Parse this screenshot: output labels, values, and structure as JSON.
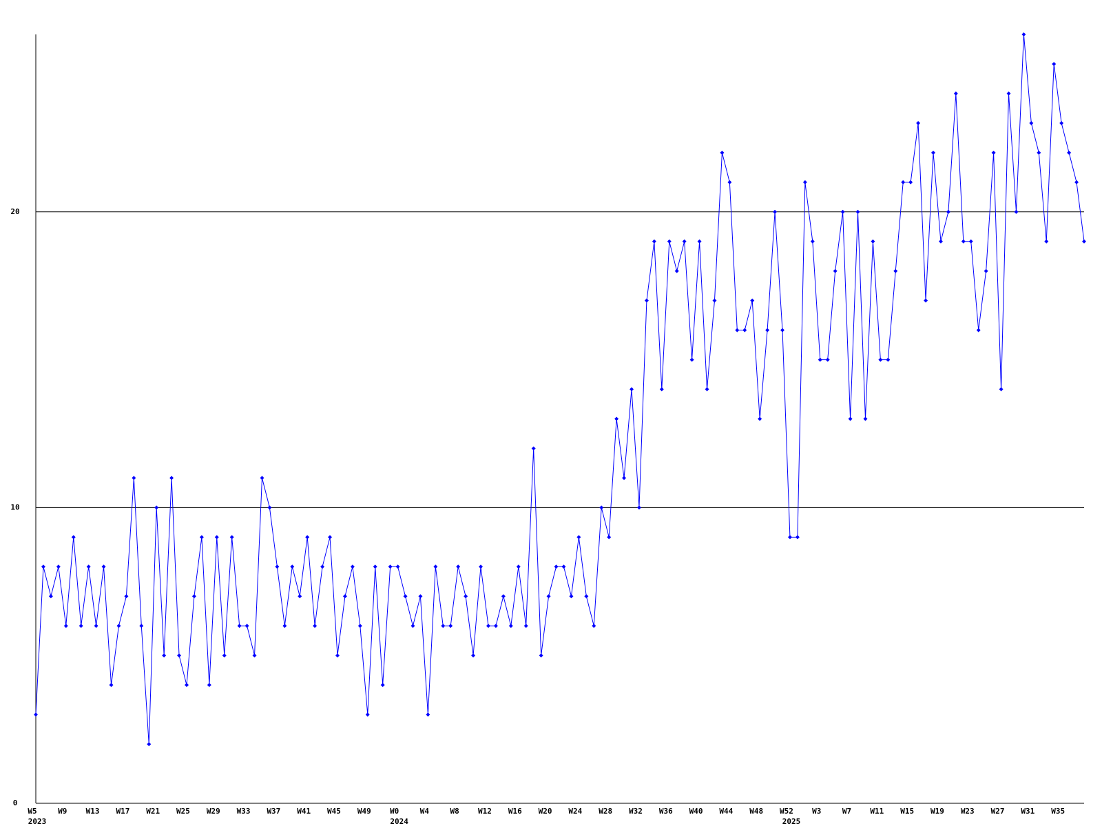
{
  "chart_data": {
    "type": "line",
    "categories": [
      "W5",
      null,
      null,
      null,
      "W9",
      null,
      null,
      null,
      "W13",
      null,
      null,
      null,
      "W17",
      null,
      null,
      null,
      "W21",
      null,
      null,
      null,
      "W25",
      null,
      null,
      null,
      "W29",
      null,
      null,
      null,
      "W33",
      null,
      null,
      null,
      "W37",
      null,
      null,
      null,
      "W41",
      null,
      null,
      null,
      "W45",
      null,
      null,
      null,
      "W49",
      null,
      null,
      null,
      "W0",
      null,
      null,
      null,
      "W4",
      null,
      null,
      null,
      "W8",
      null,
      null,
      null,
      "W12",
      null,
      null,
      null,
      "W16",
      null,
      null,
      null,
      "W20",
      null,
      null,
      null,
      "W24",
      null,
      null,
      null,
      "W28",
      null,
      null,
      null,
      "W32",
      null,
      null,
      null,
      "W36",
      null,
      null,
      null,
      "W40",
      null,
      null,
      null,
      "W44",
      null,
      null,
      null,
      "W48",
      null,
      null,
      null,
      "W52",
      null,
      null,
      null,
      "W3",
      null,
      null,
      null,
      "W7",
      null,
      null,
      null,
      "W11",
      null,
      null,
      null,
      "W15",
      null,
      null,
      null,
      "W19",
      null,
      null,
      null,
      "W23",
      null,
      null,
      null,
      "W27",
      null,
      null,
      null,
      "W31",
      null,
      null,
      null,
      "W35",
      null,
      null,
      null
    ],
    "category_years": [
      "2023",
      null,
      null,
      null,
      null,
      null,
      null,
      null,
      null,
      null,
      null,
      null,
      null,
      null,
      null,
      null,
      null,
      null,
      null,
      null,
      null,
      null,
      null,
      null,
      null,
      null,
      null,
      null,
      null,
      null,
      null,
      null,
      null,
      null,
      null,
      null,
      null,
      null,
      null,
      null,
      null,
      null,
      null,
      null,
      null,
      null,
      null,
      null,
      "2024",
      null,
      null,
      null,
      null,
      null,
      null,
      null,
      null,
      null,
      null,
      null,
      null,
      null,
      null,
      null,
      null,
      null,
      null,
      null,
      null,
      null,
      null,
      null,
      null,
      null,
      null,
      null,
      null,
      null,
      null,
      null,
      null,
      null,
      null,
      null,
      null,
      null,
      null,
      null,
      null,
      null,
      null,
      null,
      null,
      null,
      null,
      null,
      null,
      null,
      null,
      null,
      "2025",
      null,
      null,
      null,
      null,
      null,
      null,
      null,
      null,
      null,
      null,
      null,
      null,
      null,
      null,
      null,
      null,
      null,
      null,
      null,
      null,
      null,
      null,
      null,
      null,
      null,
      null,
      null,
      null,
      null,
      null,
      null,
      null,
      null,
      null,
      null,
      null,
      null,
      null,
      null
    ],
    "values": [
      3,
      8,
      7,
      8,
      6,
      9,
      6,
      8,
      6,
      8,
      4,
      6,
      7,
      11,
      6,
      2,
      10,
      5,
      11,
      5,
      4,
      7,
      9,
      4,
      9,
      5,
      9,
      6,
      6,
      5,
      11,
      10,
      8,
      6,
      8,
      7,
      9,
      6,
      8,
      9,
      5,
      7,
      8,
      6,
      3,
      8,
      4,
      8,
      8,
      7,
      6,
      7,
      3,
      8,
      6,
      6,
      8,
      7,
      5,
      8,
      6,
      6,
      7,
      6,
      8,
      6,
      12,
      5,
      7,
      8,
      8,
      7,
      9,
      7,
      6,
      10,
      9,
      13,
      11,
      14,
      10,
      17,
      19,
      14,
      19,
      18,
      19,
      15,
      19,
      14,
      17,
      22,
      21,
      16,
      16,
      17,
      13,
      16,
      20,
      16,
      9,
      9,
      21,
      19,
      15,
      15,
      18,
      20,
      13,
      20,
      13,
      19,
      15,
      15,
      18,
      21,
      21,
      23,
      17,
      22,
      19,
      20,
      24,
      19,
      19,
      16,
      18,
      22,
      14,
      24,
      20,
      26,
      23,
      22,
      19,
      25,
      23,
      22,
      21,
      19
    ],
    "color": "#0000ff",
    "ylim": [
      0,
      26
    ],
    "yticks": [
      0,
      10,
      20
    ],
    "grid": true
  }
}
